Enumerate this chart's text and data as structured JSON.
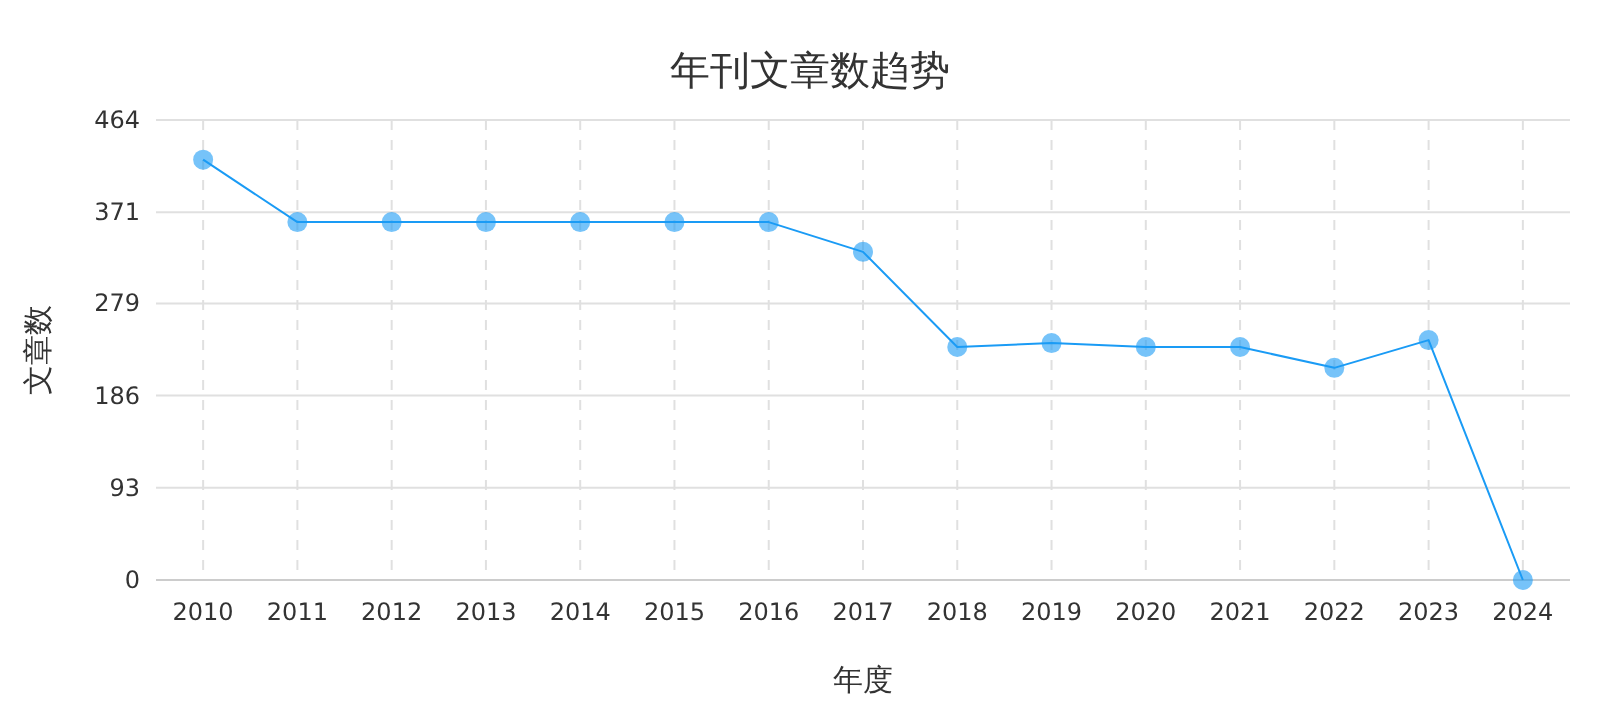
{
  "chart_data": {
    "type": "line",
    "title": "年刊文章数趋势",
    "xlabel": "年度",
    "ylabel": "文章数",
    "categories": [
      "2010",
      "2011",
      "2012",
      "2013",
      "2014",
      "2015",
      "2016",
      "2017",
      "2018",
      "2019",
      "2020",
      "2021",
      "2022",
      "2023",
      "2024"
    ],
    "series": [
      {
        "color": "#1a9bf5",
        "values": [
          424,
          361,
          361,
          361,
          361,
          361,
          361,
          331,
          235,
          239,
          235,
          235,
          214,
          242,
          0
        ]
      }
    ],
    "ylim": [
      0,
      464
    ],
    "yticks": [
      0,
      93,
      186,
      279,
      371,
      464
    ],
    "grid": true,
    "marker": "circle",
    "line_style": "solid"
  }
}
